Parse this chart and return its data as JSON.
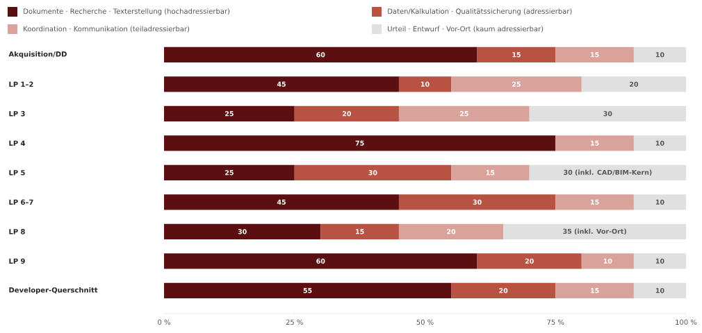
{
  "chart_data": {
    "type": "bar",
    "orientation": "horizontal",
    "stacked": true,
    "legend": "top",
    "categories": [
      "Akquisition/DD",
      "LP 1–2",
      "LP 3",
      "LP 4",
      "LP 5",
      "LP 6–7",
      "LP 8",
      "LP 9",
      "Developer-Querschnitt"
    ],
    "series": [
      {
        "name": "Dokumente · Recherche · Texterstellung (hochadressierbar)",
        "color": "#5c0f10",
        "values": [
          60,
          45,
          25,
          75,
          25,
          45,
          30,
          60,
          55
        ],
        "value_labels": [
          "60",
          "45",
          "25",
          "75",
          "25",
          "45",
          "30",
          "60",
          "55"
        ]
      },
      {
        "name": "Daten/Kalkulation · Qualitätssicherung (adressierbar)",
        "color": "#b85242",
        "values": [
          15,
          10,
          20,
          null,
          30,
          30,
          15,
          20,
          20
        ],
        "value_labels": [
          "15",
          "10",
          "20",
          null,
          "30",
          "30",
          "15",
          "20",
          "20"
        ]
      },
      {
        "name": "Koordination · Kommunikation (teiladressierbar)",
        "color": "#d9a39c",
        "values": [
          15,
          25,
          25,
          15,
          15,
          15,
          20,
          10,
          15
        ],
        "value_labels": [
          "15",
          "25",
          "25",
          "15",
          "15",
          "15",
          "20",
          "10",
          "15"
        ]
      },
      {
        "name": "Urteil · Entwurf · Vor-Ort (kaum adressierbar)",
        "color": "#e0e0e0",
        "values": [
          10,
          20,
          30,
          10,
          30,
          10,
          35,
          10,
          10
        ],
        "value_labels": [
          "10",
          "20",
          "30",
          "10",
          "30 (inkl. CAD/BIM-Kern)",
          "10",
          "35 (inkl. Vor-Ort)",
          "10",
          "10"
        ]
      }
    ],
    "xlim": [
      0,
      100
    ],
    "xticks": [
      {
        "value": 0,
        "label": "0 %"
      },
      {
        "value": 25,
        "label": "25 %"
      },
      {
        "value": 50,
        "label": "50 %"
      },
      {
        "value": 75,
        "label": "75 %"
      },
      {
        "value": 100,
        "label": "100 %"
      }
    ]
  }
}
